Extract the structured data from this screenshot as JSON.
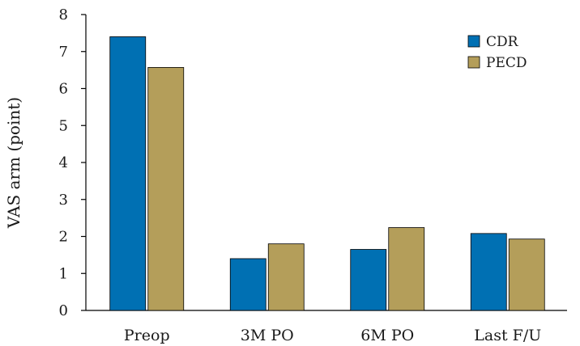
{
  "chart_data": {
    "type": "bar",
    "categories": [
      "Preop",
      "3M PO",
      "6M PO",
      "Last F/U"
    ],
    "series": [
      {
        "name": "CDR",
        "values": [
          7.4,
          1.4,
          1.65,
          2.08
        ],
        "color": "#0070b3"
      },
      {
        "name": "PECD",
        "values": [
          6.57,
          1.8,
          2.24,
          1.93
        ],
        "color": "#b49e5a"
      }
    ],
    "title": "",
    "xlabel": "",
    "ylabel": "VAS arm (point)",
    "ylim": [
      0,
      8
    ],
    "yticks": [
      "0",
      "1",
      "2",
      "3",
      "4",
      "5",
      "6",
      "7",
      "8"
    ],
    "grid": false,
    "legend_position": "top-right"
  }
}
